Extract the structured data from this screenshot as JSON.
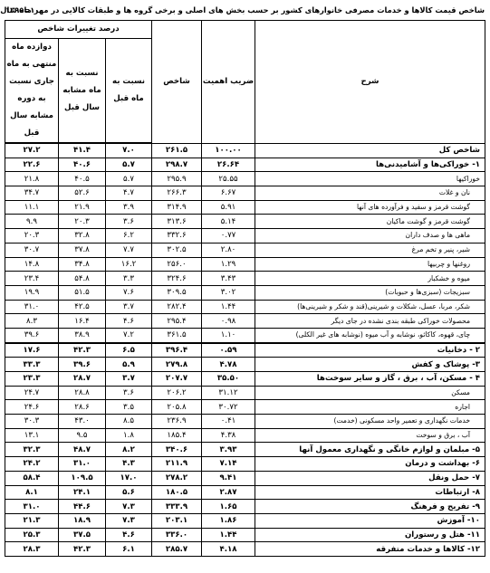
{
  "page": {
    "title": "شاخص قیمت کالاها و خدمات مصرفی خانوارهای کشور بر حسب بخش های اصلی و برخی گروه ها و طبقات کالایی در مهر ماه سال ۱۳۹۹",
    "code": "۱۰۰=۱۳۹۵"
  },
  "headers": {
    "desc": "شرح",
    "weight": "ضریب اهمیت",
    "index": "شاخص",
    "change_group": "درصد تغییرات شاخص",
    "monthly": "نسبت به ماه قبل",
    "yearly": "نسبت به ماه مشابه سال قبل",
    "annual": "دوازده ماه منتهی به ماه جاری نسبت به دوره مشابه سال قبل"
  },
  "rows": [
    {
      "desc": "شاخص کل",
      "weight": "۱۰۰.۰۰",
      "index": "۲۶۱.۵",
      "monthly": "۷.۰",
      "yearly": "۴۱.۴",
      "annual": "۲۷.۲",
      "kind": "bold"
    },
    {
      "desc": "۱- خوراکی‌ها و آشامیدنی‌ها",
      "weight": "۲۶.۶۴",
      "index": "۲۹۸.۷",
      "monthly": "۵.۷",
      "yearly": "۴۰.۶",
      "annual": "۲۲.۶",
      "kind": "bold"
    },
    {
      "desc": "خوراکیها",
      "weight": "۲۵.۵۵",
      "index": "۲۹۵.۹",
      "monthly": "۵.۷",
      "yearly": "۴۰.۵",
      "annual": "۲۱.۸",
      "kind": "plain"
    },
    {
      "desc": "نان و غلات",
      "weight": "۶.۶۷",
      "index": "۲۶۶.۳",
      "monthly": "۴.۷",
      "yearly": "۵۲.۶",
      "annual": "۳۴.۷",
      "kind": "sub"
    },
    {
      "desc": "گوشت قرمز و سفید و فرآورده های آنها",
      "weight": "۵.۹۱",
      "index": "۳۱۴.۹",
      "monthly": "۳.۹",
      "yearly": "۲۱.۹",
      "annual": "۱۱.۱",
      "kind": "sub"
    },
    {
      "desc": "گوشت قرمز و گوشت ماکیان",
      "weight": "۵.۱۴",
      "index": "۳۱۳.۶",
      "monthly": "۳.۶",
      "yearly": "۲۰.۳",
      "annual": "۹.۹",
      "kind": "sub"
    },
    {
      "desc": "ماهی ها و صدف داران",
      "weight": "۰.۷۷",
      "index": "۳۳۲.۶",
      "monthly": "۶.۲",
      "yearly": "۳۲.۸",
      "annual": "۲۰.۳",
      "kind": "sub"
    },
    {
      "desc": "شیر، پنیر و تخم مرغ",
      "weight": "۲.۸۰",
      "index": "۳۰۲.۵",
      "monthly": "۷.۷",
      "yearly": "۳۷.۸",
      "annual": "۳۰.۷",
      "kind": "sub"
    },
    {
      "desc": "روغنها و چربیها",
      "weight": "۱.۲۹",
      "index": "۲۵۶.۰",
      "monthly": "۱۶.۲",
      "yearly": "۳۴.۸",
      "annual": "۱۴.۸",
      "kind": "sub"
    },
    {
      "desc": "میوه و خشکبار",
      "weight": "۳.۴۳",
      "index": "۳۲۴.۶",
      "monthly": "۳.۳",
      "yearly": "۵۴.۸",
      "annual": "۲۳.۴",
      "kind": "sub"
    },
    {
      "desc": "سبزیجات (سبزی‌ها و حبوبات)",
      "weight": "۳.۰۲",
      "index": "۳۰۹.۵",
      "monthly": "۷.۶",
      "yearly": "۵۱.۵",
      "annual": "۱۹.۹",
      "kind": "sub"
    },
    {
      "desc": "شکر، مربا، عسل، شکلات و شیرینی(قند و شکر و شیرینی‌ها)",
      "weight": "۱.۴۴",
      "index": "۲۸۲.۴",
      "monthly": "۳.۷",
      "yearly": "۴۲.۵",
      "annual": "۳۱.۰",
      "kind": "sub"
    },
    {
      "desc": "محصولات خوراکی طبقه بندی نشده در جای دیگر",
      "weight": "۰.۹۸",
      "index": "۲۹۵.۴",
      "monthly": "۴.۶",
      "yearly": "۱۶.۴",
      "annual": "۸.۳",
      "kind": "sub"
    },
    {
      "desc": "چای، قهوه، کاکائو، نوشابه و آب میوه (نوشابه های غیر الکلی)",
      "weight": "۱.۱۰",
      "index": "۳۶۱.۵",
      "monthly": "۷.۲",
      "yearly": "۳۸.۹",
      "annual": "۳۹.۶",
      "kind": "sub heavy"
    },
    {
      "desc": "۲ - دخانیات",
      "weight": "۰.۵۹",
      "index": "۳۹۶.۴",
      "monthly": "۶.۵",
      "yearly": "۴۲.۳",
      "annual": "۱۷.۶",
      "kind": "bold"
    },
    {
      "desc": "۳- پوشاک و کفش",
      "weight": "۴.۷۸",
      "index": "۲۷۹.۸",
      "monthly": "۵.۹",
      "yearly": "۳۹.۶",
      "annual": "۳۳.۳",
      "kind": "bold"
    },
    {
      "desc": "۴ - مسکن، آب ، برق ، گاز و سایر سوخت‌ها",
      "weight": "۳۵.۵۰",
      "index": "۲۰۷.۷",
      "monthly": "۳.۷",
      "yearly": "۲۸.۷",
      "annual": "۲۳.۳",
      "kind": "bold"
    },
    {
      "desc": "مسکن",
      "weight": "۳۱.۱۲",
      "index": "۲۰۶.۲",
      "monthly": "۳.۶",
      "yearly": "۲۸.۸",
      "annual": "۲۴.۷",
      "kind": "sub"
    },
    {
      "desc": "اجاره",
      "weight": "۳۰.۷۲",
      "index": "۲۰۵.۸",
      "monthly": "۳.۵",
      "yearly": "۲۸.۶",
      "annual": "۲۴.۶",
      "kind": "sub"
    },
    {
      "desc": "خدمات نگهداری و تعمیر واحد مسکونی (خدمت)",
      "weight": "۰.۴۱",
      "index": "۲۳۶.۹",
      "monthly": "۸.۵",
      "yearly": "۴۳.۰",
      "annual": "۳۰.۳",
      "kind": "sub"
    },
    {
      "desc": "آب ، برق و سوخت",
      "weight": "۴.۳۸",
      "index": "۱۸۵.۴",
      "monthly": "۱.۸",
      "yearly": "۹.۵",
      "annual": "۱۳.۱",
      "kind": "sub"
    },
    {
      "desc": "۵- مبلمان و لوازم خانگی و نگهداری معمول آنها",
      "weight": "۳.۹۳",
      "index": "۳۴۰.۶",
      "monthly": "۸.۲",
      "yearly": "۴۸.۷",
      "annual": "۳۲.۳",
      "kind": "bold"
    },
    {
      "desc": "۶- بهداشت و درمان",
      "weight": "۷.۱۴",
      "index": "۲۱۱.۹",
      "monthly": "۴.۳",
      "yearly": "۳۱.۰",
      "annual": "۲۴.۲",
      "kind": "bold"
    },
    {
      "desc": "۷- حمل ونقل",
      "weight": "۹.۴۱",
      "index": "۲۷۸.۲",
      "monthly": "۱۷.۰",
      "yearly": "۱۰۹.۵",
      "annual": "۵۸.۴",
      "kind": "bold"
    },
    {
      "desc": "۸- ارتباطات",
      "weight": "۲.۸۷",
      "index": "۱۸۰.۵",
      "monthly": "۵.۶",
      "yearly": "۲۴.۱",
      "annual": "۸.۱",
      "kind": "bold"
    },
    {
      "desc": "۹- تفریح و فرهنگ",
      "weight": "۱.۶۵",
      "index": "۳۳۳.۹",
      "monthly": "۷.۳",
      "yearly": "۴۴.۶",
      "annual": "۳۱.۰",
      "kind": "bold"
    },
    {
      "desc": "۱۰- آموزش",
      "weight": "۱.۸۶",
      "index": "۲۰۳.۱",
      "monthly": "۷.۳",
      "yearly": "۱۸.۹",
      "annual": "۲۱.۳",
      "kind": "bold"
    },
    {
      "desc": "۱۱- هتل و رستوران",
      "weight": "۱.۴۴",
      "index": "۳۳۶.۰",
      "monthly": "۴.۶",
      "yearly": "۳۷.۵",
      "annual": "۲۵.۳",
      "kind": "bold"
    },
    {
      "desc": "۱۲- کالاها و خدمات متفرقه",
      "weight": "۴.۱۸",
      "index": "۲۸۵.۷",
      "monthly": "۶.۱",
      "yearly": "۴۲.۳",
      "annual": "۲۸.۳",
      "kind": "bold"
    }
  ]
}
